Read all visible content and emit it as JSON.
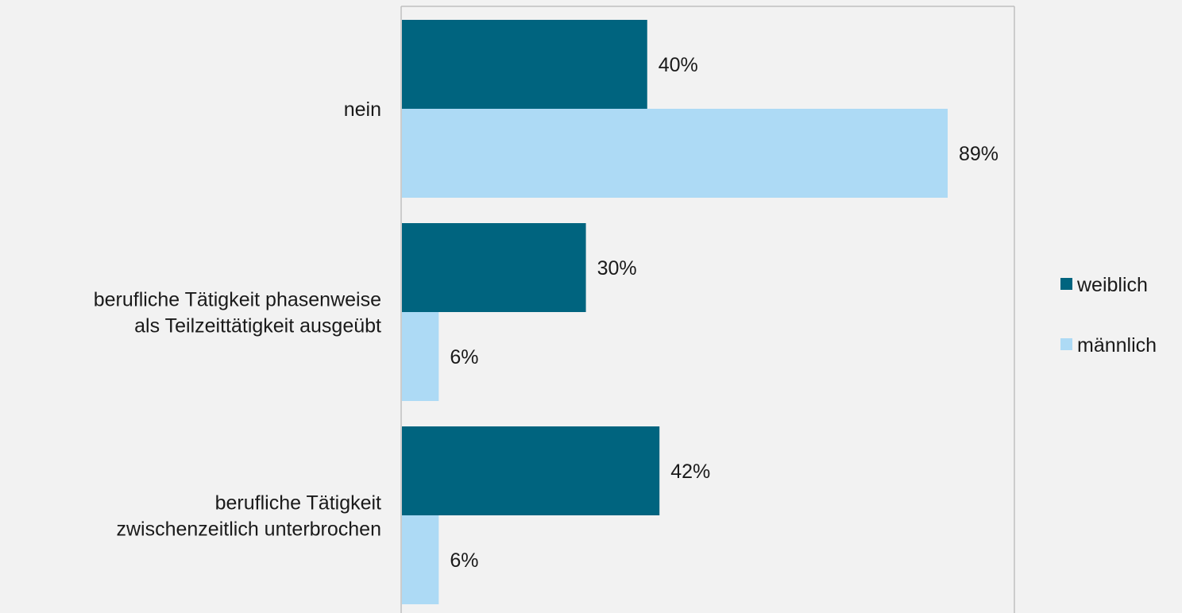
{
  "chart_data": {
    "type": "bar",
    "orientation": "horizontal",
    "categories": [
      [
        "nein"
      ],
      [
        "berufliche Tätigkeit phasenweise",
        "als Teilzeittätigkeit ausgeübt"
      ],
      [
        "berufliche Tätigkeit",
        "zwischenzeitlich unterbrochen"
      ]
    ],
    "series": [
      {
        "name": "weiblich",
        "values": [
          40,
          30,
          42
        ],
        "color": "#00647f"
      },
      {
        "name": "männlich",
        "values": [
          89,
          6,
          6
        ],
        "color": "#addaf5"
      }
    ],
    "value_labels": [
      [
        "40%",
        "30%",
        "42%"
      ],
      [
        "89%",
        "6%",
        "6%"
      ]
    ],
    "xlim": [
      0,
      100
    ],
    "grid": false,
    "legend": "right",
    "plot_border_color": "#bfbfbf"
  }
}
